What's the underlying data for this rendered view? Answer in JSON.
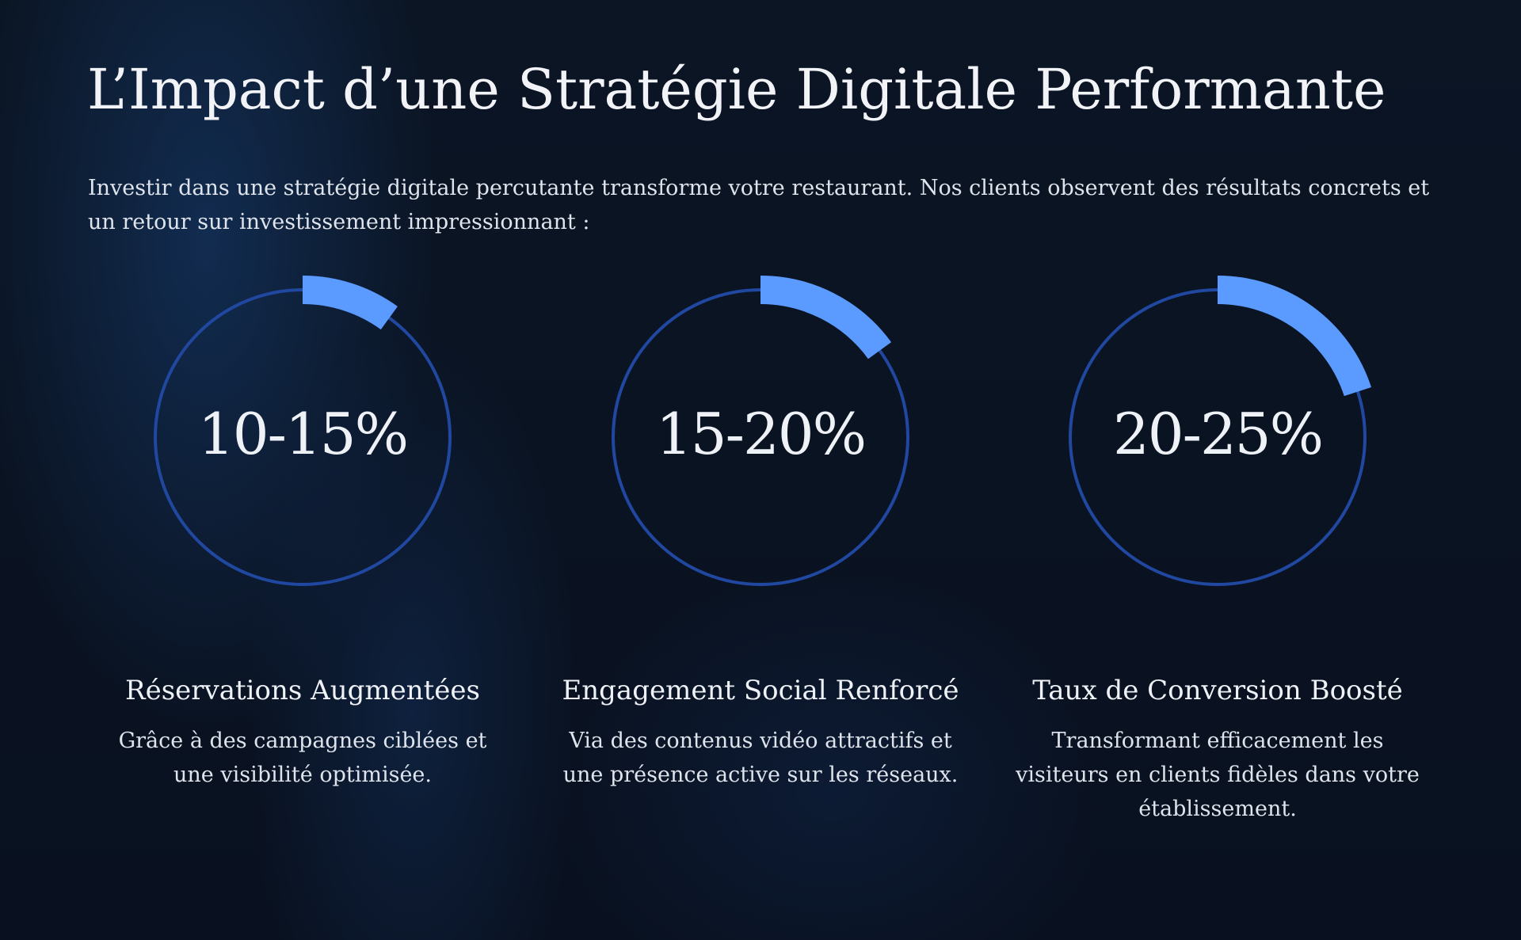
{
  "header": {
    "title": "L’Impact d’une Stratégie Digitale Performante",
    "intro": "Investir dans une stratégie digitale percutante transforme votre restaurant. Nos clients observent des résultats concrets et un retour sur investissement impressionnant :"
  },
  "colors": {
    "background": "#0a1220",
    "ring_track": "#2148a0",
    "ring_progress": "#5b9bff",
    "text": "#eef1f6"
  },
  "stats": [
    {
      "value": "10-15%",
      "title": "Réservations Augmentées",
      "description": "Grâce à des campagnes ciblées et une visibilité optimisée.",
      "progress_percent": 10
    },
    {
      "value": "15-20%",
      "title": "Engagement Social Renforcé",
      "description": "Via des contenus vidéo attractifs et une présence active sur les réseaux.",
      "progress_percent": 15
    },
    {
      "value": "20-25%",
      "title": "Taux de Conversion Boosté",
      "description": "Transformant efficacement les visiteurs en clients fidèles dans votre établissement.",
      "progress_percent": 20
    }
  ]
}
